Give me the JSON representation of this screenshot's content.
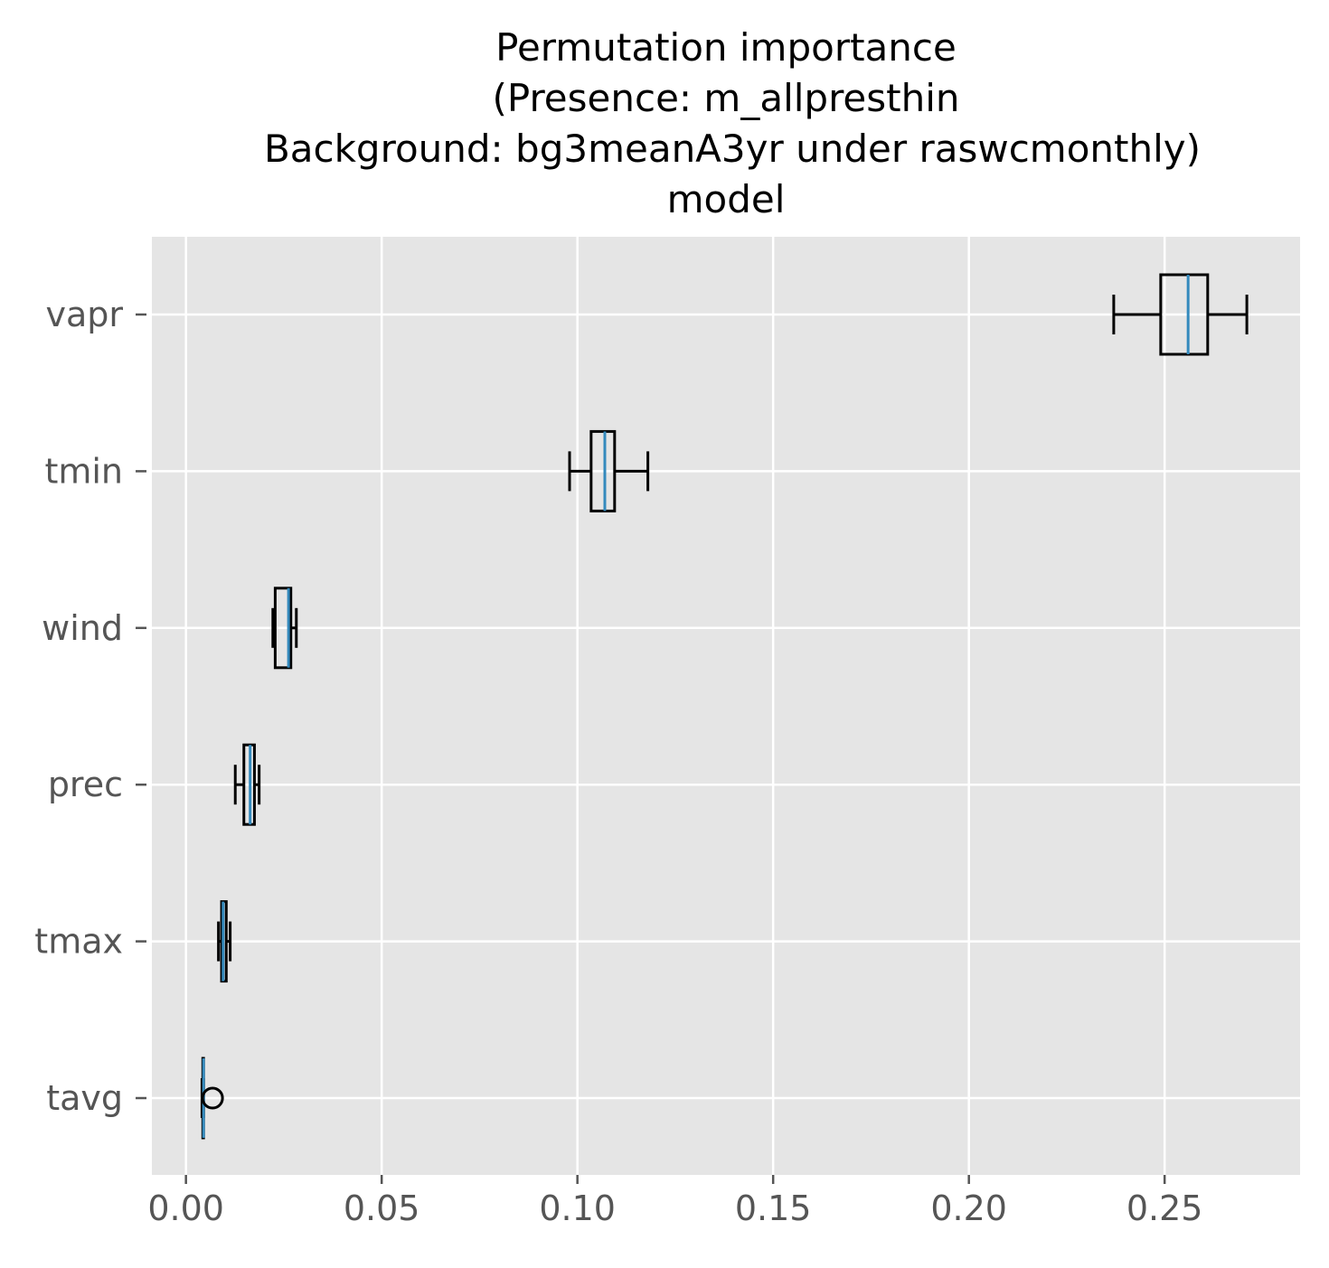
{
  "chart_data": {
    "type": "box",
    "orientation": "horizontal",
    "title": [
      "Permutation importance",
      "(Presence: m_allpresthin",
      "Background: bg3meanA3yr under raswcmonthly)",
      "model"
    ],
    "xlim": [
      -0.0087,
      0.2846
    ],
    "xticks": [
      0.0,
      0.05,
      0.1,
      0.15,
      0.2,
      0.25
    ],
    "xtick_labels": [
      "0.00",
      "0.05",
      "0.10",
      "0.15",
      "0.20",
      "0.25"
    ],
    "categories": [
      "vapr",
      "tmin",
      "wind",
      "prec",
      "tmax",
      "tavg"
    ],
    "boxes": [
      {
        "label": "vapr",
        "whislo": 0.237,
        "q1": 0.249,
        "med": 0.256,
        "q3": 0.261,
        "whishi": 0.271,
        "fliers": []
      },
      {
        "label": "tmin",
        "whislo": 0.098,
        "q1": 0.1035,
        "med": 0.107,
        "q3": 0.1095,
        "whishi": 0.118,
        "fliers": []
      },
      {
        "label": "wind",
        "whislo": 0.0222,
        "q1": 0.0228,
        "med": 0.0262,
        "q3": 0.0268,
        "whishi": 0.0282,
        "fliers": []
      },
      {
        "label": "prec",
        "whislo": 0.0126,
        "q1": 0.0148,
        "med": 0.0164,
        "q3": 0.0175,
        "whishi": 0.0187,
        "fliers": []
      },
      {
        "label": "tmax",
        "whislo": 0.0083,
        "q1": 0.0091,
        "med": 0.0095,
        "q3": 0.0103,
        "whishi": 0.0113,
        "fliers": []
      },
      {
        "label": "tavg",
        "whislo": 0.0041,
        "q1": 0.0043,
        "med": 0.0045,
        "q3": 0.0045,
        "whishi": 0.0045,
        "fliers": [
          0.0068
        ]
      }
    ],
    "grid": true,
    "colors": {
      "plot_background": "#e5e5e5",
      "grid": "#ffffff",
      "box_edge": "#000000",
      "median": "#348abd",
      "tick_text": "#555555",
      "title_text": "#000000"
    }
  }
}
